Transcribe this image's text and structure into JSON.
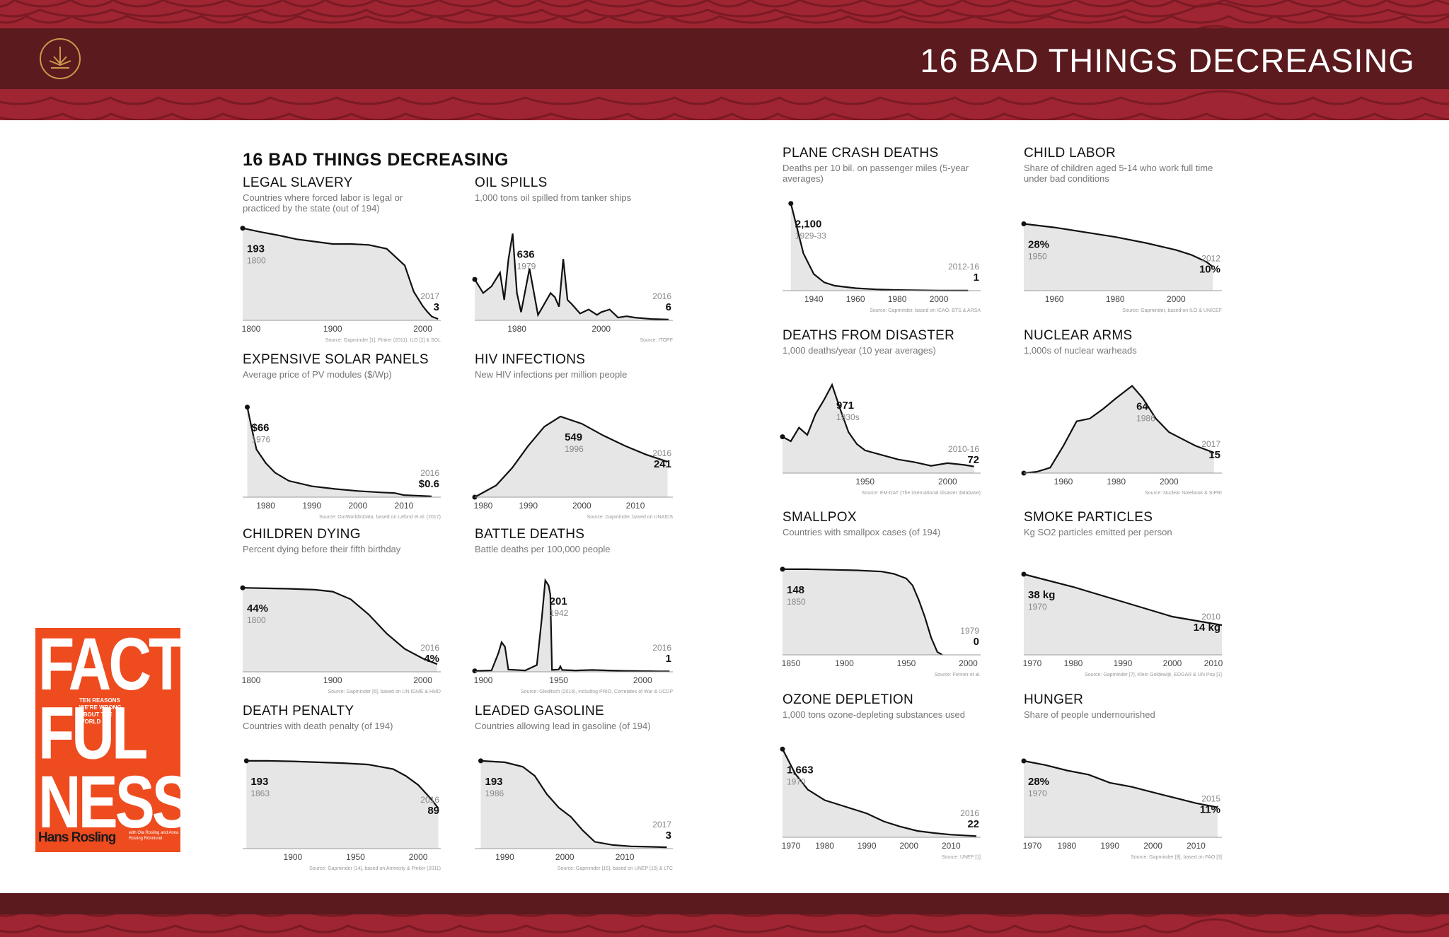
{
  "header": {
    "title": "16 BAD THINGS DECREASING",
    "logo_icon": "lotus-circle-icon"
  },
  "sheet_title": "16 BAD THINGS DECREASING",
  "book": {
    "line1": "FACT",
    "line2": "FUL",
    "line3": "NESS",
    "tagline": "TEN REASONS WE'RE WRONG ABOUT THE WORLD",
    "author": "Hans Rosling",
    "co_authors": "with Ola Rosling and Anna Rosling Rönnlund"
  },
  "colors": {
    "band": "#9e2531",
    "bar": "#5a1a1e",
    "area_fill": "#e6e6e6",
    "line": "#111111",
    "book": "#ee4b1f"
  },
  "chart_data": [
    {
      "type": "area",
      "title": "LEGAL SLAVERY",
      "subtitle": "Countries where forced labor is legal or practiced by the state (out of 194)",
      "x": [
        1800,
        1820,
        1840,
        1860,
        1880,
        1900,
        1920,
        1940,
        1960,
        1980,
        1990,
        2000,
        2005,
        2010,
        2017
      ],
      "y": [
        193,
        185,
        178,
        170,
        165,
        160,
        160,
        158,
        150,
        115,
        60,
        30,
        18,
        8,
        3
      ],
      "xlim": [
        1800,
        2020
      ],
      "ylim": [
        0,
        200
      ],
      "xticks": [
        "1800",
        "1900",
        "2000"
      ],
      "labels": [
        {
          "v": "193",
          "s": "1800",
          "i": 0
        },
        {
          "v": "3",
          "s": "2017",
          "i": 14
        }
      ],
      "source": "Source: Gapminder [1], Pinker (2011), ILO [2] & SOL"
    },
    {
      "type": "area",
      "title": "OIL SPILLS",
      "subtitle": "1,000 tons oil spilled from tanker ships",
      "x": [
        1970,
        1972,
        1974,
        1976,
        1977,
        1978,
        1979,
        1980,
        1981,
        1983,
        1985,
        1988,
        1989,
        1990,
        1991,
        1992,
        1993,
        1995,
        1997,
        1999,
        2000,
        2002,
        2004,
        2006,
        2008,
        2010,
        2012,
        2014,
        2016
      ],
      "y": [
        300,
        200,
        250,
        350,
        150,
        450,
        636,
        200,
        60,
        380,
        40,
        200,
        170,
        100,
        450,
        150,
        120,
        50,
        80,
        40,
        60,
        80,
        20,
        30,
        20,
        15,
        10,
        8,
        6
      ],
      "xlim": [
        1970,
        2017
      ],
      "ylim": [
        0,
        700
      ],
      "xticks": [
        "1980",
        "2000"
      ],
      "labels": [
        {
          "v": "636",
          "s": "1979",
          "i": 6
        },
        {
          "v": "6",
          "s": "2016",
          "i": 28
        }
      ],
      "source": "Source: ITOPF"
    },
    {
      "type": "area",
      "title": "PLANE CRASH DEATHS",
      "subtitle": "Deaths per 10 bil. on passenger miles (5-year averages)",
      "x": [
        1929,
        1935,
        1940,
        1945,
        1950,
        1960,
        1970,
        1980,
        1990,
        2000,
        2010,
        2014
      ],
      "y": [
        2100,
        900,
        400,
        200,
        120,
        60,
        30,
        15,
        8,
        4,
        2,
        1
      ],
      "xlim": [
        1925,
        2020
      ],
      "ylim": [
        0,
        2300
      ],
      "xticks": [
        "1940",
        "1960",
        "1980",
        "2000"
      ],
      "labels": [
        {
          "v": "2,100",
          "s": "1929-33",
          "i": 0
        },
        {
          "v": "1",
          "s": "2012-16",
          "i": 11
        }
      ],
      "source": "Source: Gapminder, based on ICAO, BTS & ARSA"
    },
    {
      "type": "area",
      "title": "CHILD LABOR",
      "subtitle": "Share of children aged 5-14 who work full time under bad conditions",
      "x": [
        1950,
        1960,
        1970,
        1980,
        1990,
        2000,
        2005,
        2010,
        2012
      ],
      "y": [
        28,
        26.5,
        24.5,
        22.5,
        20,
        17,
        15,
        12,
        10
      ],
      "xlim": [
        1950,
        2015
      ],
      "ylim": [
        0,
        40
      ],
      "xticks": [
        "1960",
        "1980",
        "2000"
      ],
      "labels": [
        {
          "v": "28%",
          "s": "1950",
          "i": 0
        },
        {
          "v": "10%",
          "s": "2012",
          "i": 8
        }
      ],
      "source": "Source: Gapminder, based on ILO & UNICEF"
    },
    {
      "type": "area",
      "title": "EXPENSIVE SOLAR PANELS",
      "subtitle": "Average price of PV modules ($/Wp)",
      "x": [
        1976,
        1977,
        1978,
        1980,
        1982,
        1985,
        1990,
        1995,
        2000,
        2005,
        2008,
        2010,
        2016
      ],
      "y": [
        66,
        50,
        35,
        25,
        18,
        12,
        8,
        6,
        4.5,
        3.5,
        3,
        1.5,
        0.6
      ],
      "xlim": [
        1975,
        2018
      ],
      "ylim": [
        0,
        70
      ],
      "xticks": [
        "1980",
        "1990",
        "2000",
        "2010"
      ],
      "labels": [
        {
          "v": "$66",
          "s": "1976",
          "i": 0
        },
        {
          "v": "$0.6",
          "s": "2016",
          "i": 12
        }
      ],
      "source": "Source: OurWorldInData, based on Lafond et al. (2017)"
    },
    {
      "type": "area",
      "title": "HIV INFECTIONS",
      "subtitle": "New HIV infections per million people",
      "x": [
        1980,
        1984,
        1987,
        1990,
        1993,
        1996,
        2000,
        2004,
        2008,
        2012,
        2016
      ],
      "y": [
        0,
        80,
        200,
        350,
        480,
        549,
        500,
        420,
        350,
        290,
        241
      ],
      "xlim": [
        1980,
        2017
      ],
      "ylim": [
        0,
        650
      ],
      "xticks": [
        "1980",
        "1990",
        "2000",
        "2010"
      ],
      "labels": [
        {
          "v": "549",
          "s": "1996",
          "i": 5
        },
        {
          "v": "241",
          "s": "2016",
          "i": 10
        }
      ],
      "source": "Source: Gapminder, based on UNAIDS"
    },
    {
      "type": "area",
      "title": "DEATHS FROM DISASTER",
      "subtitle": "1,000 deaths/year (10 year averages)",
      "x": [
        1900,
        1905,
        1910,
        1915,
        1920,
        1925,
        1930,
        1935,
        1940,
        1945,
        1950,
        1960,
        1970,
        1980,
        1990,
        2000,
        2010,
        2016
      ],
      "y": [
        400,
        350,
        500,
        420,
        650,
        800,
        971,
        700,
        450,
        320,
        250,
        200,
        150,
        120,
        80,
        110,
        90,
        72
      ],
      "xlim": [
        1900,
        2020
      ],
      "ylim": [
        0,
        1050
      ],
      "xticks": [
        "1950",
        "2000"
      ],
      "labels": [
        {
          "v": "971",
          "s": "1930s",
          "i": 6
        },
        {
          "v": "72",
          "s": "2010-16",
          "i": 17
        }
      ],
      "source": "Source: EM-DAT (The international disaster database)"
    },
    {
      "type": "area",
      "title": "NUCLEAR ARMS",
      "subtitle": "1,000s of nuclear warheads",
      "x": [
        1945,
        1950,
        1955,
        1960,
        1965,
        1970,
        1975,
        1980,
        1986,
        1990,
        1995,
        2000,
        2005,
        2010,
        2017
      ],
      "y": [
        0,
        1,
        4,
        20,
        38,
        40,
        47,
        55,
        64,
        55,
        40,
        30,
        25,
        20,
        15
      ],
      "xlim": [
        1945,
        2020
      ],
      "ylim": [
        0,
        70
      ],
      "xticks": [
        "1960",
        "1980",
        "2000"
      ],
      "labels": [
        {
          "v": "64",
          "s": "1986",
          "i": 8
        },
        {
          "v": "15",
          "s": "2017",
          "i": 14
        }
      ],
      "source": "Source: Nuclear Notebook & SIPRI"
    },
    {
      "type": "area",
      "title": "CHILDREN DYING",
      "subtitle": "Percent dying before their fifth birthday",
      "x": [
        1800,
        1850,
        1880,
        1900,
        1920,
        1940,
        1960,
        1980,
        2000,
        2016
      ],
      "y": [
        44,
        43.5,
        43,
        42,
        38,
        30,
        20,
        12,
        7,
        4
      ],
      "xlim": [
        1800,
        2020
      ],
      "ylim": [
        0,
        50
      ],
      "xticks": [
        "1800",
        "1900",
        "2000"
      ],
      "labels": [
        {
          "v": "44%",
          "s": "1800",
          "i": 0
        },
        {
          "v": "4%",
          "s": "2016",
          "i": 9
        }
      ],
      "source": "Source: Gapminder [6], based on UN IGME & HMD"
    },
    {
      "type": "area",
      "title": "BATTLE DEATHS",
      "subtitle": "Battle deaths per 100,000 people",
      "x": [
        1900,
        1910,
        1914,
        1916,
        1918,
        1920,
        1930,
        1937,
        1940,
        1942,
        1944,
        1945,
        1946,
        1950,
        1951,
        1952,
        1960,
        1970,
        1980,
        1990,
        2000,
        2010,
        2016
      ],
      "y": [
        2,
        3,
        40,
        65,
        55,
        5,
        3,
        15,
        120,
        201,
        190,
        170,
        4,
        5,
        12,
        4,
        3,
        4,
        3,
        2,
        1.5,
        1,
        1
      ],
      "xlim": [
        1900,
        2018
      ],
      "ylim": [
        0,
        210
      ],
      "xticks": [
        "1900",
        "1950",
        "2000"
      ],
      "labels": [
        {
          "v": "201",
          "s": "1942",
          "i": 9
        },
        {
          "v": "1",
          "s": "2016",
          "i": 22
        }
      ],
      "source": "Source: Gleditsch (2016), including PRIO, Correlates of War & UCDP"
    },
    {
      "type": "area",
      "title": "SMALLPOX",
      "subtitle": "Countries with smallpox cases (of 194)",
      "x": [
        1850,
        1870,
        1890,
        1910,
        1930,
        1940,
        1950,
        1955,
        1960,
        1965,
        1970,
        1975,
        1979
      ],
      "y": [
        148,
        148,
        147,
        146,
        144,
        140,
        132,
        120,
        95,
        65,
        30,
        5,
        0
      ],
      "xlim": [
        1850,
        2010
      ],
      "ylim": [
        0,
        165
      ],
      "xticks": [
        "1850",
        "1900",
        "1950",
        "2000"
      ],
      "labels": [
        {
          "v": "148",
          "s": "1850",
          "i": 0
        },
        {
          "v": "0",
          "s": "1979",
          "i": 12
        }
      ],
      "source": "Source: Fenner et al."
    },
    {
      "type": "area",
      "title": "SMOKE PARTICLES",
      "subtitle": "Kg SO2 particles emitted per person",
      "x": [
        1970,
        1980,
        1990,
        2000,
        2010
      ],
      "y": [
        38,
        32,
        25,
        18,
        14
      ],
      "xlim": [
        1970,
        2010
      ],
      "ylim": [
        0,
        45
      ],
      "xticks": [
        "1970",
        "1980",
        "1990",
        "2000",
        "2010"
      ],
      "labels": [
        {
          "v": "38 kg",
          "s": "1970",
          "i": 0
        },
        {
          "v": "14 kg",
          "s": "2010",
          "i": 4
        }
      ],
      "source": "Source: Gapminder [7], Klein Goldewijk, EDGAR & UN Pop [1]"
    },
    {
      "type": "area",
      "title": "DEATH PENALTY",
      "subtitle": "Countries with death penalty (of 194)",
      "x": [
        1863,
        1880,
        1900,
        1920,
        1940,
        1960,
        1980,
        1990,
        2000,
        2010,
        2016
      ],
      "y": [
        193,
        193,
        192,
        190,
        188,
        185,
        175,
        160,
        140,
        110,
        89
      ],
      "xlim": [
        1860,
        2018
      ],
      "ylim": [
        0,
        210
      ],
      "xticks": [
        "1900",
        "1950",
        "2000"
      ],
      "labels": [
        {
          "v": "193",
          "s": "1863",
          "i": 0
        },
        {
          "v": "89",
          "s": "2016",
          "i": 10
        }
      ],
      "source": "Source: Gapminder [14], based on Amnesty & Pinker (2011)"
    },
    {
      "type": "area",
      "title": "LEADED GASOLINE",
      "subtitle": "Countries allowing lead in gasoline (of 194)",
      "x": [
        1986,
        1990,
        1993,
        1995,
        1997,
        1999,
        2001,
        2003,
        2005,
        2008,
        2011,
        2014,
        2017
      ],
      "y": [
        193,
        190,
        180,
        160,
        120,
        90,
        70,
        40,
        15,
        8,
        5,
        4,
        3
      ],
      "xlim": [
        1985,
        2018
      ],
      "ylim": [
        0,
        210
      ],
      "xticks": [
        "1990",
        "2000",
        "2010"
      ],
      "labels": [
        {
          "v": "193",
          "s": "1986",
          "i": 0
        },
        {
          "v": "3",
          "s": "2017",
          "i": 12
        }
      ],
      "source": "Source: Gapminder [15], based on UNEP [15] & LTC"
    },
    {
      "type": "area",
      "title": "OZONE DEPLETION",
      "subtitle": "1,000 tons ozone-depleting substances used",
      "x": [
        1970,
        1973,
        1976,
        1980,
        1984,
        1988,
        1990,
        1994,
        1998,
        2002,
        2006,
        2010,
        2016
      ],
      "y": [
        1663,
        1200,
        900,
        700,
        600,
        500,
        450,
        300,
        200,
        120,
        80,
        50,
        22
      ],
      "xlim": [
        1970,
        2017
      ],
      "ylim": [
        0,
        1800
      ],
      "xticks": [
        "1970",
        "1980",
        "1990",
        "2000",
        "2010"
      ],
      "labels": [
        {
          "v": "1,663",
          "s": "1970",
          "i": 0
        },
        {
          "v": "22",
          "s": "2016",
          "i": 12
        }
      ],
      "source": "Source: UNEP [1]"
    },
    {
      "type": "area",
      "title": "HUNGER",
      "subtitle": "Share of people undernourished",
      "x": [
        1970,
        1975,
        1980,
        1985,
        1990,
        1995,
        2000,
        2005,
        2010,
        2015
      ],
      "y": [
        28,
        26.5,
        24.5,
        23,
        20,
        18.5,
        16.5,
        14.5,
        12.5,
        11
      ],
      "xlim": [
        1970,
        2016
      ],
      "ylim": [
        0,
        35
      ],
      "xticks": [
        "1970",
        "1980",
        "1990",
        "2000",
        "2010"
      ],
      "labels": [
        {
          "v": "28%",
          "s": "1970",
          "i": 0
        },
        {
          "v": "11%",
          "s": "2015",
          "i": 9
        }
      ],
      "source": "Source: Gapminder [8], based on FAO [3]"
    }
  ]
}
